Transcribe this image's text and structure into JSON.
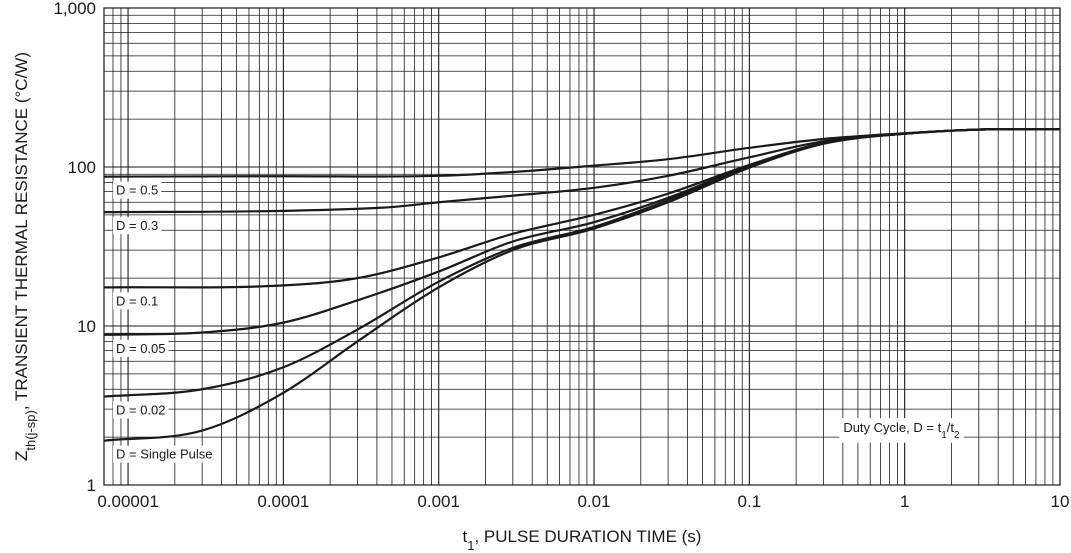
{
  "chart_data": {
    "type": "line",
    "x_scale": "log",
    "y_scale": "log",
    "xlim": [
      7e-06,
      10
    ],
    "ylim": [
      1,
      1000
    ],
    "grid": true,
    "xlabel": {
      "prefix": "t",
      "sub": "1",
      "rest": ", PULSE DURATION TIME (s)"
    },
    "ylabel": {
      "prefix": "Z",
      "sub": "th(j-sp)",
      "rest": ",  TRANSIENT THERMAL RESISTANCE (°C/W)"
    },
    "x_ticks": [
      {
        "value": 1e-05,
        "label": "0.00001"
      },
      {
        "value": 0.0001,
        "label": "0.0001"
      },
      {
        "value": 0.001,
        "label": "0.001"
      },
      {
        "value": 0.01,
        "label": "0.01"
      },
      {
        "value": 0.1,
        "label": "0.1"
      },
      {
        "value": 1,
        "label": "1"
      },
      {
        "value": 10,
        "label": "10"
      }
    ],
    "y_ticks": [
      {
        "value": 1,
        "label": "1"
      },
      {
        "value": 10,
        "label": "10"
      },
      {
        "value": 100,
        "label": "100"
      },
      {
        "value": 1000,
        "label": "1,000"
      }
    ],
    "annotation": {
      "prefix": "Duty Cycle, D = t",
      "sub1": "1",
      "mid": "/t",
      "sub2": "2"
    },
    "series": [
      {
        "name": "D = 0.5",
        "x": [
          7e-06,
          0.0001,
          0.001,
          0.003,
          0.01,
          0.03,
          0.1,
          0.3,
          1,
          3,
          10
        ],
        "y": [
          87,
          87.5,
          88,
          93,
          102,
          112,
          132,
          150,
          163,
          172,
          173
        ]
      },
      {
        "name": "D = 0.3",
        "x": [
          7e-06,
          0.0001,
          0.0005,
          0.001,
          0.003,
          0.01,
          0.03,
          0.1,
          0.3,
          1,
          3,
          10
        ],
        "y": [
          52,
          53,
          56,
          60,
          66,
          74,
          88,
          115,
          145,
          162,
          172,
          173
        ]
      },
      {
        "name": "D = 0.1",
        "x": [
          7e-06,
          0.0001,
          0.0003,
          0.001,
          0.003,
          0.01,
          0.03,
          0.1,
          0.3,
          1,
          3,
          10
        ],
        "y": [
          17.5,
          18,
          20,
          27,
          38,
          50,
          68,
          103,
          142,
          162,
          172,
          173
        ]
      },
      {
        "name": "D = 0.05",
        "x": [
          7e-06,
          3e-05,
          0.0001,
          0.0003,
          0.001,
          0.003,
          0.01,
          0.03,
          0.1,
          0.3,
          1,
          3,
          10
        ],
        "y": [
          8.8,
          9.1,
          10.5,
          14.5,
          22,
          34,
          45,
          64,
          102,
          142,
          162,
          172,
          173
        ]
      },
      {
        "name": "D = 0.02",
        "x": [
          7e-06,
          3e-05,
          0.0001,
          0.0003,
          0.001,
          0.003,
          0.01,
          0.03,
          0.1,
          0.3,
          1,
          3,
          10
        ],
        "y": [
          3.6,
          4.0,
          5.5,
          9.5,
          19,
          31,
          42,
          62,
          100,
          141,
          162,
          172,
          173
        ]
      },
      {
        "name": "D = Single Pulse",
        "x": [
          7e-06,
          3e-05,
          0.0001,
          0.0003,
          0.001,
          0.003,
          0.01,
          0.03,
          0.1,
          0.3,
          1,
          3,
          10
        ],
        "y": [
          1.9,
          2.2,
          3.8,
          8.0,
          17.5,
          30,
          41,
          60,
          99,
          140,
          162,
          172,
          173
        ]
      }
    ]
  }
}
